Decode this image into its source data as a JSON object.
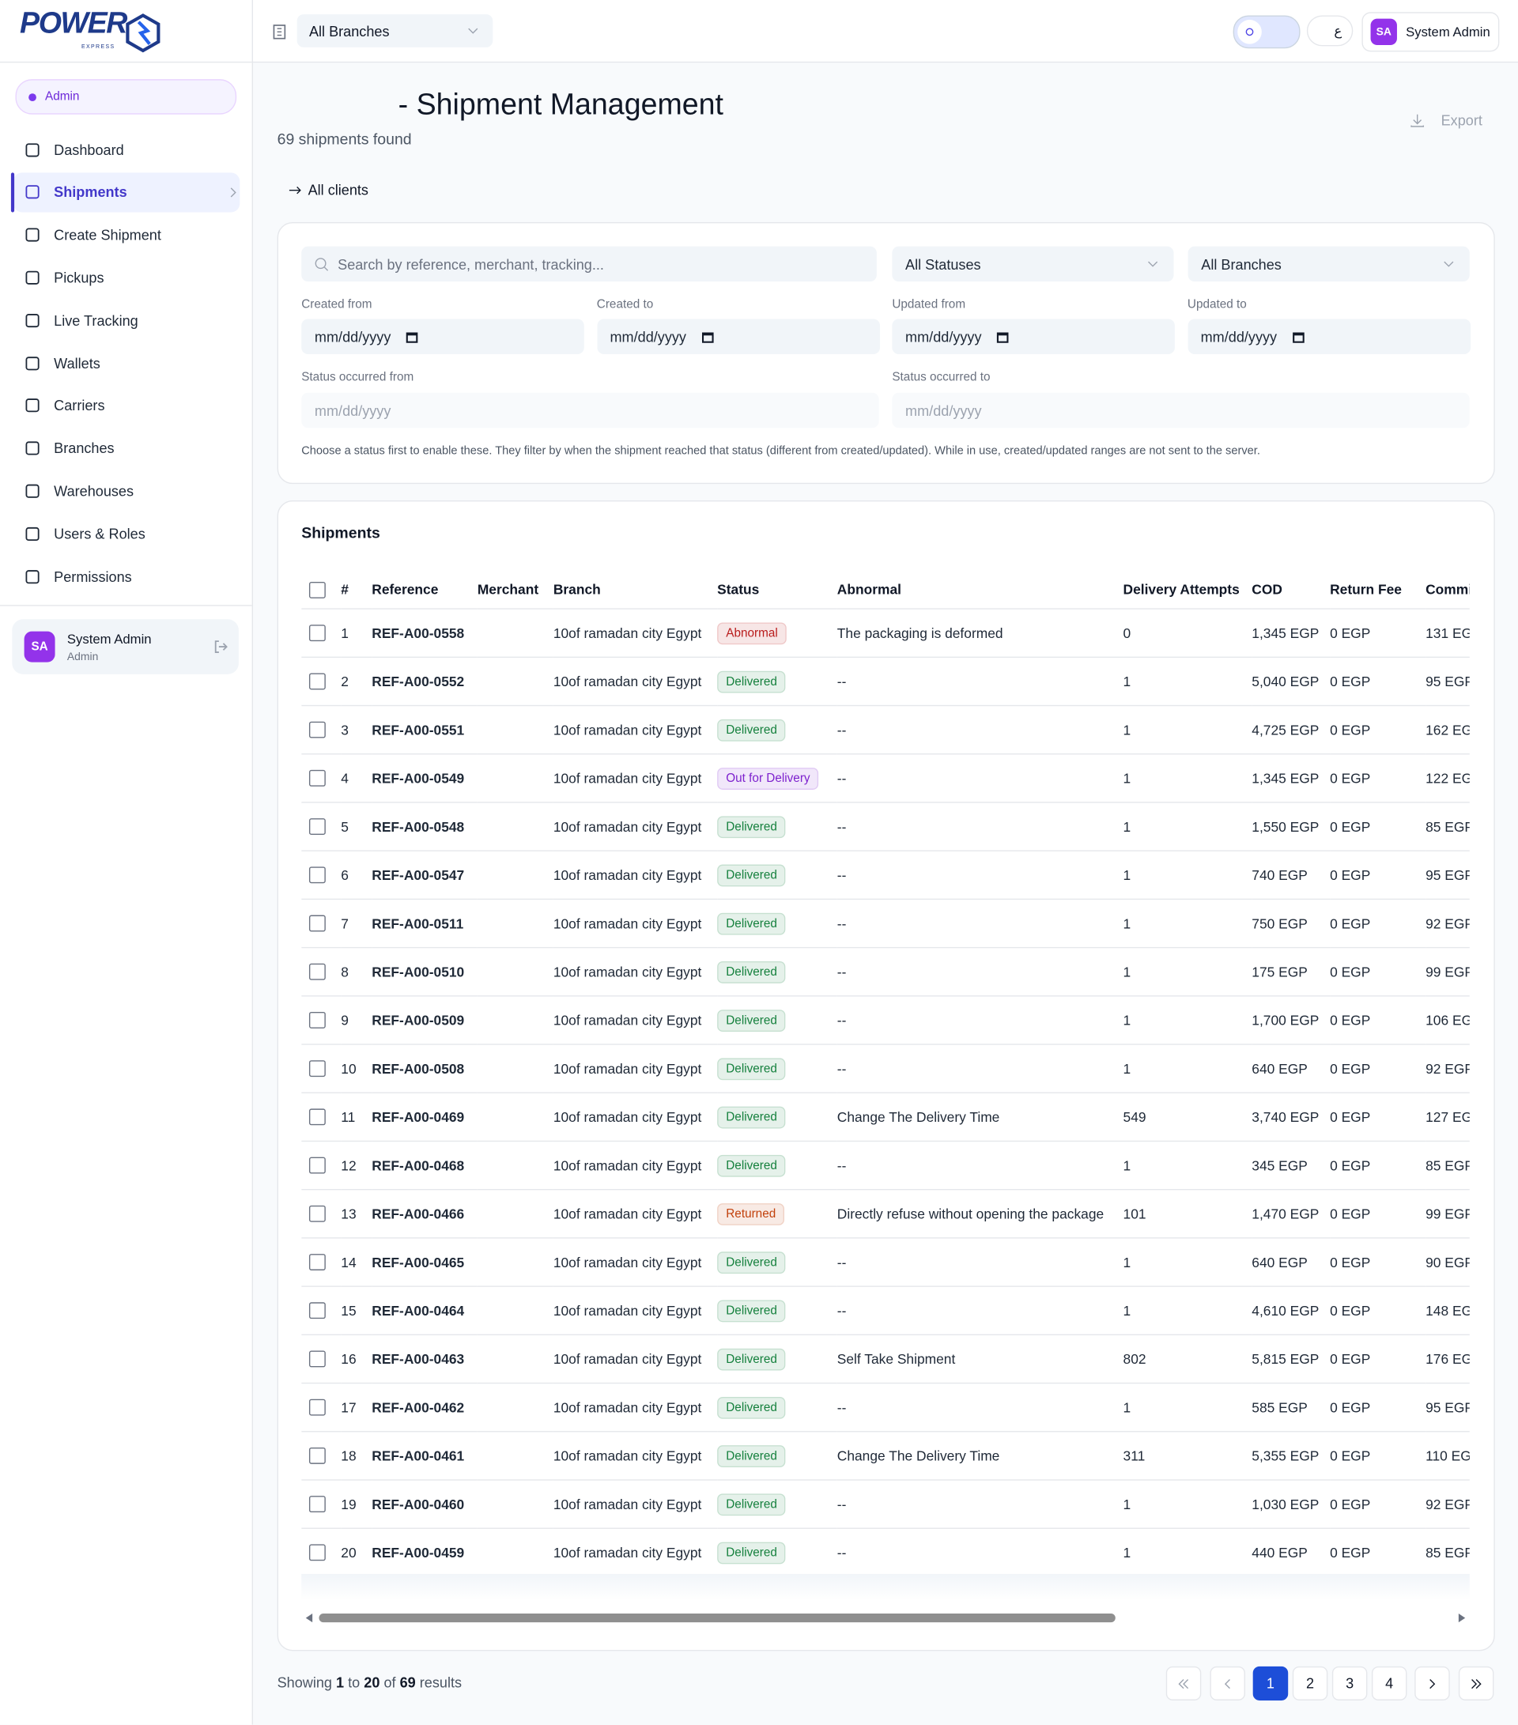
{
  "logo": {
    "text": "POWER",
    "sub": "EXPRESS"
  },
  "sidebar": {
    "role": "Admin",
    "active": 1,
    "items": [
      "Dashboard",
      "Shipments",
      "Create Shipment",
      "Pickups",
      "Live Tracking",
      "Wallets",
      "Carriers",
      "Branches",
      "Warehouses",
      "Users & Roles",
      "Permissions"
    ],
    "user": {
      "initials": "SA",
      "name": "System Admin",
      "role": "Admin"
    }
  },
  "topbar": {
    "branch": "All Branches",
    "lang": "ع",
    "user_initials": "SA",
    "user_name": "System Admin"
  },
  "header": {
    "title": "- Shipment Management",
    "count": "69 shipments found",
    "export": "Export",
    "back": "All clients"
  },
  "filters": {
    "search": "Search by reference, merchant, tracking...",
    "status": "All Statuses",
    "branch": "All Branches",
    "dates": [
      {
        "label": "Created from",
        "value": "mm/dd/yyyy"
      },
      {
        "label": "Created to",
        "value": "mm/dd/yyyy"
      },
      {
        "label": "Updated from",
        "value": "mm/dd/yyyy"
      },
      {
        "label": "Updated to",
        "value": "mm/dd/yyyy"
      }
    ],
    "status_dates": [
      {
        "label": "Status occurred from",
        "value": "mm/dd/yyyy"
      },
      {
        "label": "Status occurred to",
        "value": "mm/dd/yyyy"
      }
    ],
    "note": "Choose a status first to enable these. They filter by when the shipment reached that status (different from created/updated). While in use, created/updated ranges are not sent to the server."
  },
  "table": {
    "title": "Shipments",
    "columns": [
      "#",
      "Reference",
      "Merchant",
      "Branch",
      "Status",
      "Abnormal",
      "Delivery Attempts",
      "COD",
      "Return Fee",
      "Commi"
    ],
    "rows": [
      {
        "status_color": "#b91c1c",
        "cells": [
          "1",
          "REF-A00-0558",
          "10of ramadan city Egypt",
          "Abnormal",
          "The packaging is deformed",
          "0",
          "1,345 EGP",
          "0 EGP",
          "131 EG"
        ]
      },
      {
        "status_color": "#15803d",
        "cells": [
          "2",
          "REF-A00-0552",
          "10of ramadan city Egypt",
          "Delivered",
          "--",
          "1",
          "5,040 EGP",
          "0 EGP",
          "95 EGP"
        ]
      },
      {
        "status_color": "#15803d",
        "cells": [
          "3",
          "REF-A00-0551",
          "10of ramadan city Egypt",
          "Delivered",
          "--",
          "1",
          "4,725 EGP",
          "0 EGP",
          "162 EG"
        ]
      },
      {
        "status_color": "#7e22ce",
        "cells": [
          "4",
          "REF-A00-0549",
          "10of ramadan city Egypt",
          "Out for Delivery",
          "--",
          "1",
          "1,345 EGP",
          "0 EGP",
          "122 EG"
        ]
      },
      {
        "status_color": "#15803d",
        "cells": [
          "5",
          "REF-A00-0548",
          "10of ramadan city Egypt",
          "Delivered",
          "--",
          "1",
          "1,550 EGP",
          "0 EGP",
          "85 EGP"
        ]
      },
      {
        "status_color": "#15803d",
        "cells": [
          "6",
          "REF-A00-0547",
          "10of ramadan city Egypt",
          "Delivered",
          "--",
          "1",
          "740 EGP",
          "0 EGP",
          "95 EGP"
        ]
      },
      {
        "status_color": "#15803d",
        "cells": [
          "7",
          "REF-A00-0511",
          "10of ramadan city Egypt",
          "Delivered",
          "--",
          "1",
          "750 EGP",
          "0 EGP",
          "92 EGP"
        ]
      },
      {
        "status_color": "#15803d",
        "cells": [
          "8",
          "REF-A00-0510",
          "10of ramadan city Egypt",
          "Delivered",
          "--",
          "1",
          "175 EGP",
          "0 EGP",
          "99 EGP"
        ]
      },
      {
        "status_color": "#15803d",
        "cells": [
          "9",
          "REF-A00-0509",
          "10of ramadan city Egypt",
          "Delivered",
          "--",
          "1",
          "1,700 EGP",
          "0 EGP",
          "106 EG"
        ]
      },
      {
        "status_color": "#15803d",
        "cells": [
          "10",
          "REF-A00-0508",
          "10of ramadan city Egypt",
          "Delivered",
          "--",
          "1",
          "640 EGP",
          "0 EGP",
          "92 EGP"
        ]
      },
      {
        "status_color": "#15803d",
        "cells": [
          "11",
          "REF-A00-0469",
          "10of ramadan city Egypt",
          "Delivered",
          "Change The Delivery Time",
          "549",
          "3,740 EGP",
          "0 EGP",
          "127 EG"
        ]
      },
      {
        "status_color": "#15803d",
        "cells": [
          "12",
          "REF-A00-0468",
          "10of ramadan city Egypt",
          "Delivered",
          "--",
          "1",
          "345 EGP",
          "0 EGP",
          "85 EGP"
        ]
      },
      {
        "status_color": "#c2410c",
        "cells": [
          "13",
          "REF-A00-0466",
          "10of ramadan city Egypt",
          "Returned",
          "Directly refuse without opening the package",
          "101",
          "1,470 EGP",
          "0 EGP",
          "99 EGP"
        ]
      },
      {
        "status_color": "#15803d",
        "cells": [
          "14",
          "REF-A00-0465",
          "10of ramadan city Egypt",
          "Delivered",
          "--",
          "1",
          "640 EGP",
          "0 EGP",
          "90 EGP"
        ]
      },
      {
        "status_color": "#15803d",
        "cells": [
          "15",
          "REF-A00-0464",
          "10of ramadan city Egypt",
          "Delivered",
          "--",
          "1",
          "4,610 EGP",
          "0 EGP",
          "148 EG"
        ]
      },
      {
        "status_color": "#15803d",
        "cells": [
          "16",
          "REF-A00-0463",
          "10of ramadan city Egypt",
          "Delivered",
          "Self Take Shipment",
          "802",
          "5,815 EGP",
          "0 EGP",
          "176 EG"
        ]
      },
      {
        "status_color": "#15803d",
        "cells": [
          "17",
          "REF-A00-0462",
          "10of ramadan city Egypt",
          "Delivered",
          "--",
          "1",
          "585 EGP",
          "0 EGP",
          "95 EGP"
        ]
      },
      {
        "status_color": "#15803d",
        "cells": [
          "18",
          "REF-A00-0461",
          "10of ramadan city Egypt",
          "Delivered",
          "Change The Delivery Time",
          "311",
          "5,355 EGP",
          "0 EGP",
          "110 EG"
        ]
      },
      {
        "status_color": "#15803d",
        "cells": [
          "19",
          "REF-A00-0460",
          "10of ramadan city Egypt",
          "Delivered",
          "--",
          "1",
          "1,030 EGP",
          "0 EGP",
          "92 EGP"
        ]
      },
      {
        "status_color": "#15803d",
        "cells": [
          "20",
          "REF-A00-0459",
          "10of ramadan city Egypt",
          "Delivered",
          "--",
          "1",
          "440 EGP",
          "0 EGP",
          "85 EGP"
        ]
      }
    ]
  },
  "footer": {
    "showing": "Showing",
    "from": "1",
    "to_word": "to",
    "to": "20",
    "of_word": "of",
    "total": "69",
    "results": "results"
  },
  "pagination": {
    "pages": [
      "1",
      "2",
      "3",
      "4"
    ],
    "current": 0
  }
}
